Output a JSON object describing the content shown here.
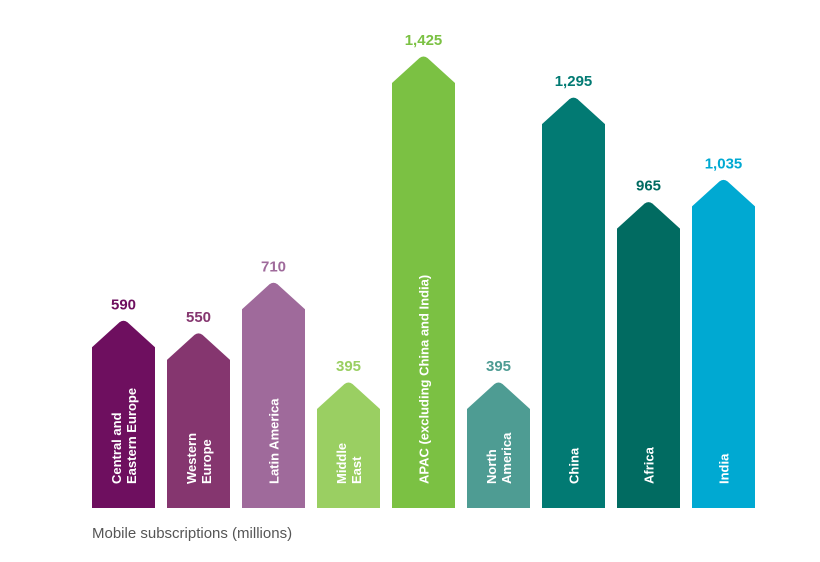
{
  "chart_data": {
    "type": "bar",
    "categories": [
      [
        "Central and",
        "Eastern Europe"
      ],
      [
        "Western",
        "Europe"
      ],
      [
        "Latin America"
      ],
      [
        "Middle",
        "East"
      ],
      [
        "APAC (excluding China and India)"
      ],
      [
        "North",
        "America"
      ],
      [
        "China"
      ],
      [
        "Africa"
      ],
      [
        "India"
      ]
    ],
    "values": [
      590,
      550,
      710,
      395,
      1425,
      395,
      1295,
      965,
      1035
    ],
    "value_labels": [
      "590",
      "550",
      "710",
      "395",
      "1,425",
      "395",
      "1,295",
      "965",
      "1,035"
    ],
    "colors": [
      "#6e0f5f",
      "#85366f",
      "#9f6a9b",
      "#9acf62",
      "#7bc143",
      "#4e9c93",
      "#027a73",
      "#016b61",
      "#00a9d2"
    ],
    "ylim": [
      0,
      1425
    ],
    "xlabel": "Mobile subscriptions (millions)",
    "title": "",
    "ylabel": ""
  }
}
